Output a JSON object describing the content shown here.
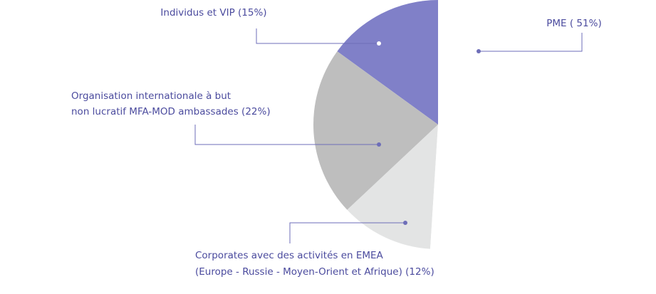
{
  "chart_data": {
    "type": "pie",
    "categories": [
      [
        "Individus et VIP (15%)"
      ],
      [
        "Organisation internationale à but",
        "non lucratif MFA-MOD ambassades (22%)"
      ],
      [
        "Corporates avec des activités en EMEA",
        "(Europe - Russie - Moyen-Orient et Afrique)  (12%)"
      ],
      [
        "PME ( 51%)"
      ]
    ],
    "values": [
      15,
      22,
      12,
      51
    ],
    "colors": [
      "#8080c8",
      "#bebebe",
      "#e3e4e4",
      "#ffffff"
    ]
  }
}
